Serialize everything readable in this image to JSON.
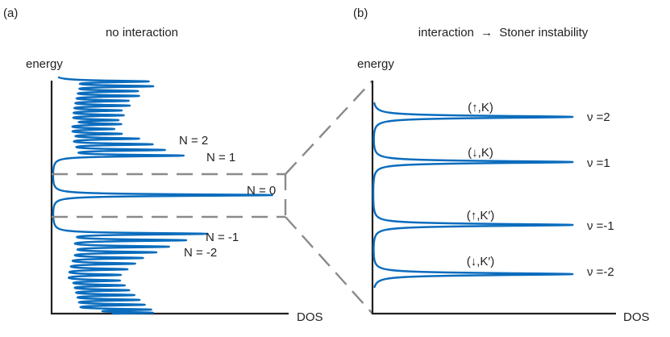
{
  "panels": [
    {
      "letter": "(a)",
      "title": "no interaction",
      "y_axis_label": "energy",
      "x_axis_label": "DOS",
      "level_labels": [
        "N = 2",
        "N = 1",
        "N = 0",
        "N = -1",
        "N = -2"
      ]
    },
    {
      "letter": "(b)",
      "title_left": "interaction",
      "title_arrow": "→",
      "title_right": "Stoner instability",
      "y_axis_label": "energy",
      "x_axis_label": "DOS",
      "levels": [
        {
          "state": "(↑,K)",
          "filling": "ν =2"
        },
        {
          "state": "(↓,K)",
          "filling": "ν =1"
        },
        {
          "state": "(↑,K′)",
          "filling": "ν =-1"
        },
        {
          "state": "(↓,K′)",
          "filling": "ν =-2"
        }
      ]
    }
  ],
  "colors": {
    "curve": "#0a6cbd",
    "axis": "#231f20",
    "dashed": "#8a8a8a"
  }
}
